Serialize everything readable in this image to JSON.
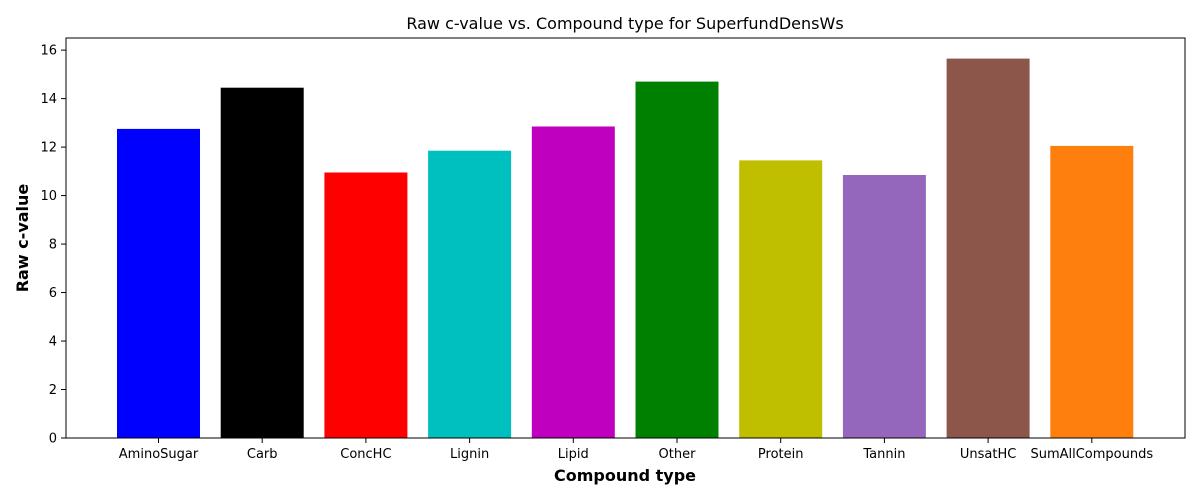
{
  "chart_data": {
    "type": "bar",
    "title": "Raw c-value vs. Compound type for SuperfundDensWs",
    "xlabel": "Compound type",
    "ylabel": "Raw c-value",
    "ylim": [
      0,
      16.5
    ],
    "yticks": [
      0,
      2,
      4,
      6,
      8,
      10,
      12,
      14,
      16
    ],
    "categories": [
      "AminoSugar",
      "Carb",
      "ConcHC",
      "Lignin",
      "Lipid",
      "Other",
      "Protein",
      "Tannin",
      "UnsatHC",
      "SumAllCompounds"
    ],
    "values": [
      12.75,
      14.45,
      10.95,
      11.85,
      12.85,
      14.7,
      11.45,
      10.85,
      15.65,
      12.05
    ],
    "colors": [
      "#0000ff",
      "#000000",
      "#ff0000",
      "#00bfbf",
      "#bf00bf",
      "#008000",
      "#bfbf00",
      "#9467bd",
      "#8c564b",
      "#ff7f0e"
    ],
    "grid": false,
    "legend": "none"
  }
}
